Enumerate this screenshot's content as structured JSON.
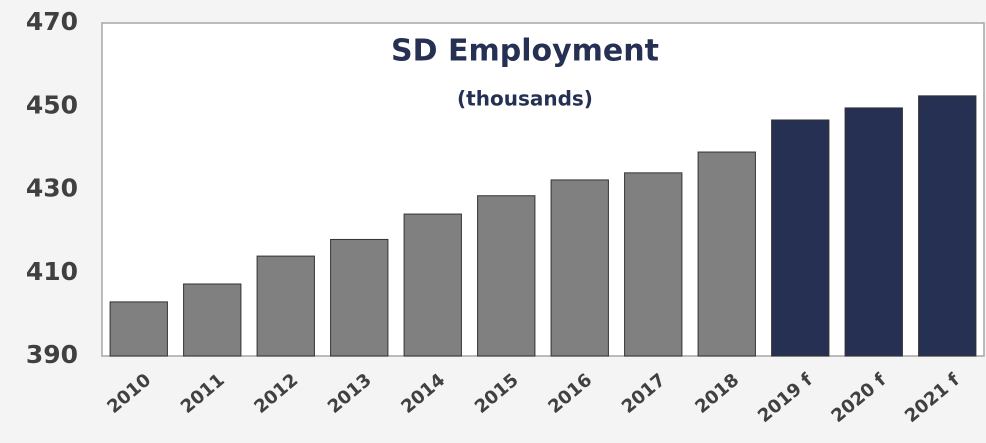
{
  "chart_data": {
    "type": "bar",
    "title": "SD Employment",
    "subtitle": "(thousands)",
    "categories": [
      "2010",
      "2011",
      "2012",
      "2013",
      "2014",
      "2015",
      "2016",
      "2017",
      "2018",
      "2019 f",
      "2020 f",
      "2021 f"
    ],
    "values": [
      403,
      407.3,
      414,
      418,
      424.1,
      428.5,
      432.3,
      434,
      439,
      446.7,
      449.6,
      452.5
    ],
    "colors": [
      "#808080",
      "#808080",
      "#808080",
      "#808080",
      "#808080",
      "#808080",
      "#808080",
      "#808080",
      "#808080",
      "#253052",
      "#253052",
      "#253052"
    ],
    "ylim": [
      390,
      470
    ],
    "yticks": [
      390,
      410,
      430,
      450,
      470
    ],
    "grid": false
  }
}
